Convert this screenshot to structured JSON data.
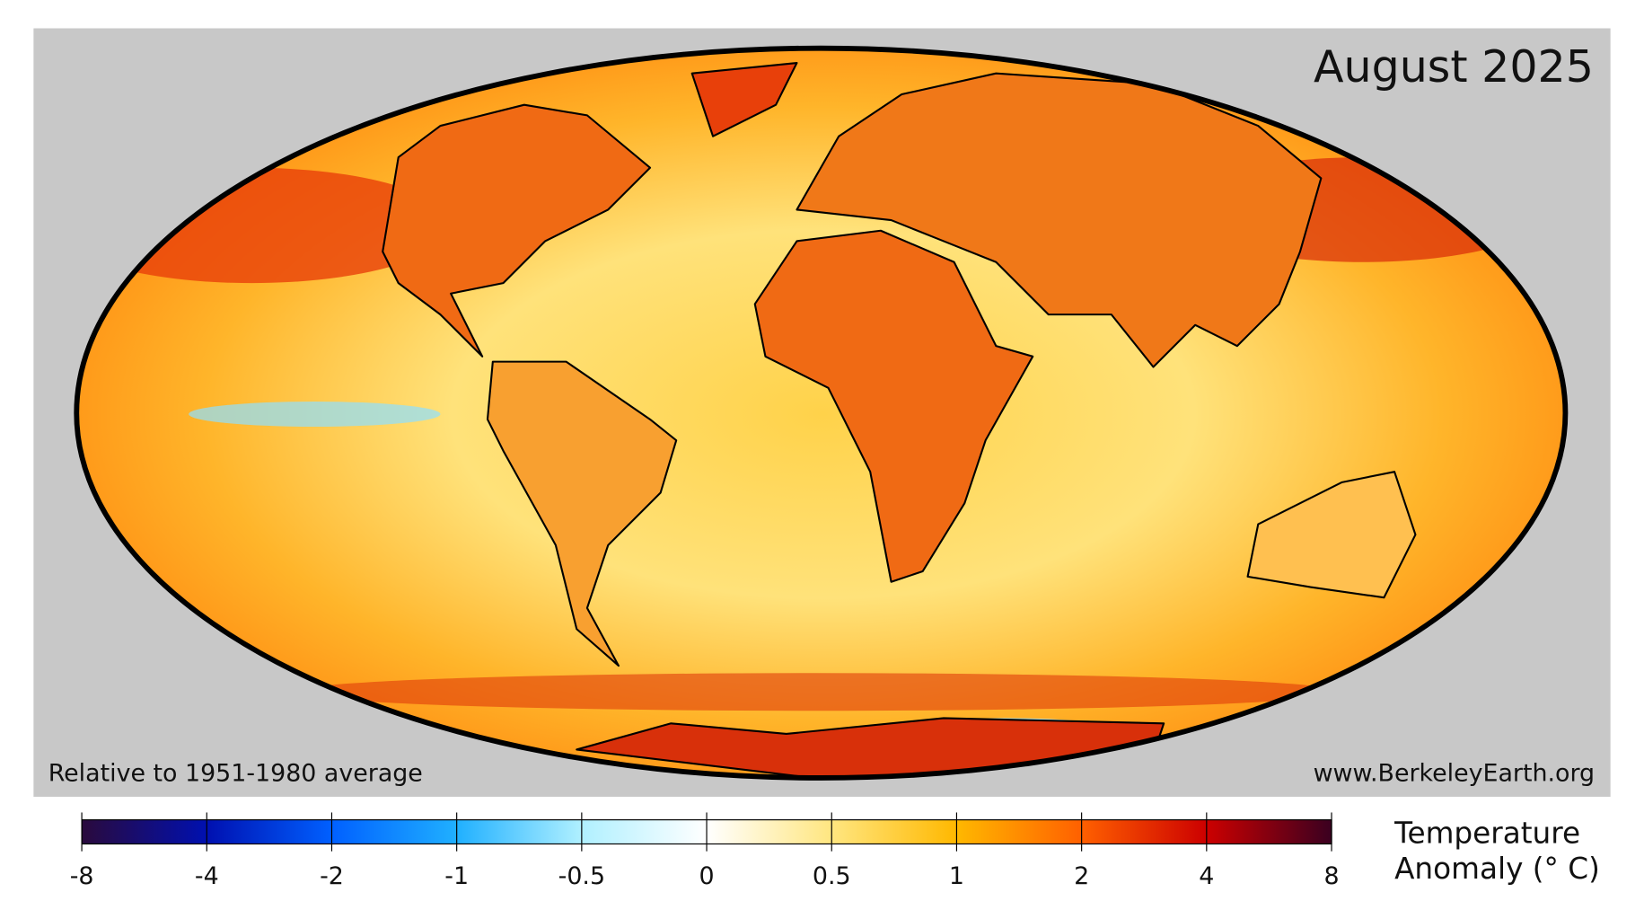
{
  "map": {
    "title": "August 2025",
    "baseline_note": "Relative to 1951-1980 average",
    "source": "www.BerkeleyEarth.org"
  },
  "colorbar": {
    "ticks": [
      -8,
      -4,
      -2,
      -1,
      -0.5,
      0,
      0.5,
      1,
      2,
      4,
      8
    ],
    "label": [
      "Temperature",
      "Anomaly (° C)"
    ]
  }
}
